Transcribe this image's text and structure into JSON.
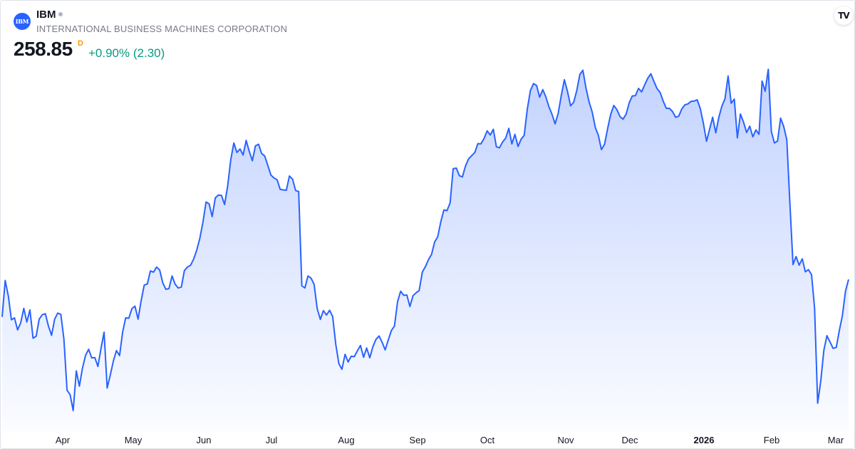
{
  "header": {
    "logo_text": "IBM",
    "ticker": "IBM",
    "company": "INTERNATIONAL BUSINESS MACHINES CORPORATION",
    "price": "258.85",
    "price_flag": "D",
    "change": "+0.90% (2.30)",
    "tv_logo": "TV"
  },
  "colors": {
    "line": "#2962ff",
    "fill_top": "#2962ff",
    "positive": "#089981",
    "flag": "#ff9800"
  },
  "chart_data": {
    "type": "area",
    "title": "",
    "xlabel": "",
    "ylabel": "",
    "grid": false,
    "x_ticks": [
      "Apr",
      "May",
      "Jun",
      "Jul",
      "Aug",
      "Sep",
      "Oct",
      "Nov",
      "Dec",
      "2026",
      "Feb",
      "Mar"
    ],
    "x_ticks_bold": [
      "2026"
    ],
    "ylim": [
      215,
      325
    ],
    "series": [
      {
        "values": [
          246.5,
          258.0,
          253.1,
          245.6,
          246.2,
          242.4,
          244.6,
          249.2,
          244.9,
          248.7,
          239.8,
          240.4,
          245.8,
          247.2,
          247.5,
          243.6,
          240.7,
          245.8,
          247.7,
          247.3,
          239.5,
          223.4,
          222.0,
          217.0,
          229.5,
          224.7,
          230.3,
          234.4,
          236.3,
          233.6,
          233.7,
          230.9,
          236.5,
          241.7,
          224.1,
          228.2,
          232.6,
          235.9,
          234.3,
          241.7,
          246.2,
          246.1,
          249.1,
          249.9,
          245.8,
          251.6,
          256.5,
          256.9,
          261.0,
          260.6,
          262.2,
          261.3,
          257.2,
          255.2,
          255.4,
          259.4,
          256.8,
          255.6,
          255.9,
          261.1,
          262.2,
          262.8,
          264.7,
          267.6,
          271.3,
          276.3,
          282.7,
          282.1,
          278.1,
          284.0,
          284.9,
          284.8,
          281.9,
          287.7,
          295.9,
          301.3,
          298.3,
          299.4,
          297.5,
          302.1,
          298.6,
          295.7,
          300.4,
          300.9,
          298.0,
          297.2,
          294.2,
          291.2,
          290.3,
          289.7,
          286.7,
          286.5,
          286.4,
          290.9,
          289.9,
          286.3,
          286.0,
          256.3,
          255.6,
          259.4,
          258.7,
          256.7,
          249.1,
          245.7,
          248.5,
          247.1,
          248.6,
          246.6,
          237.8,
          231.8,
          230.0,
          234.7,
          232.3,
          234.1,
          234.0,
          235.8,
          237.5,
          233.8,
          236.7,
          233.6,
          237.1,
          239.4,
          240.5,
          238.5,
          236.1,
          239.3,
          242.2,
          243.6,
          251.3,
          254.6,
          253.3,
          253.4,
          249.8,
          253.2,
          254.1,
          254.8,
          260.6,
          262.3,
          264.5,
          266.2,
          270.1,
          271.7,
          276.5,
          280.2,
          280.0,
          282.4,
          293.2,
          293.4,
          291.0,
          290.6,
          294.1,
          296.3,
          297.3,
          298.3,
          301.1,
          301.0,
          302.7,
          305.1,
          303.8,
          305.6,
          300.1,
          299.8,
          301.6,
          302.8,
          305.9,
          301.0,
          304.0,
          300.2,
          302.5,
          303.7,
          312.0,
          317.8,
          320.0,
          319.4,
          315.7,
          318.1,
          315.8,
          312.7,
          310.3,
          307.3,
          310.6,
          316.3,
          321.2,
          317.6,
          313.0,
          314.1,
          317.8,
          322.9,
          324.2,
          318.5,
          314.2,
          311.1,
          306.2,
          303.7,
          299.2,
          300.9,
          305.8,
          310.3,
          313.1,
          311.8,
          309.6,
          308.8,
          310.4,
          314.0,
          316.1,
          316.2,
          318.5,
          317.4,
          319.6,
          321.7,
          323.1,
          320.7,
          318.4,
          317.2,
          314.4,
          312.2,
          312.2,
          311.2,
          309.4,
          309.7,
          312.0,
          313.3,
          313.6,
          314.4,
          314.5,
          314.9,
          312.1,
          307.5,
          301.8,
          305.6,
          309.4,
          304.5,
          309.4,
          312.9,
          315.3,
          322.4,
          313.8,
          315.1,
          302.9,
          310.4,
          307.8,
          304.6,
          306.6,
          303.2,
          305.4,
          304.0,
          320.8,
          317.6,
          324.5,
          304.9,
          301.3,
          301.9,
          309.1,
          306.5,
          302.3,
          282.4,
          263.0,
          265.5,
          262.8,
          264.8,
          260.7,
          261.4,
          259.8,
          249.2,
          219.3,
          226.4,
          236.0,
          240.6,
          238.6,
          236.6,
          236.9,
          242.2,
          246.9,
          254.7,
          258.3
        ]
      }
    ]
  }
}
